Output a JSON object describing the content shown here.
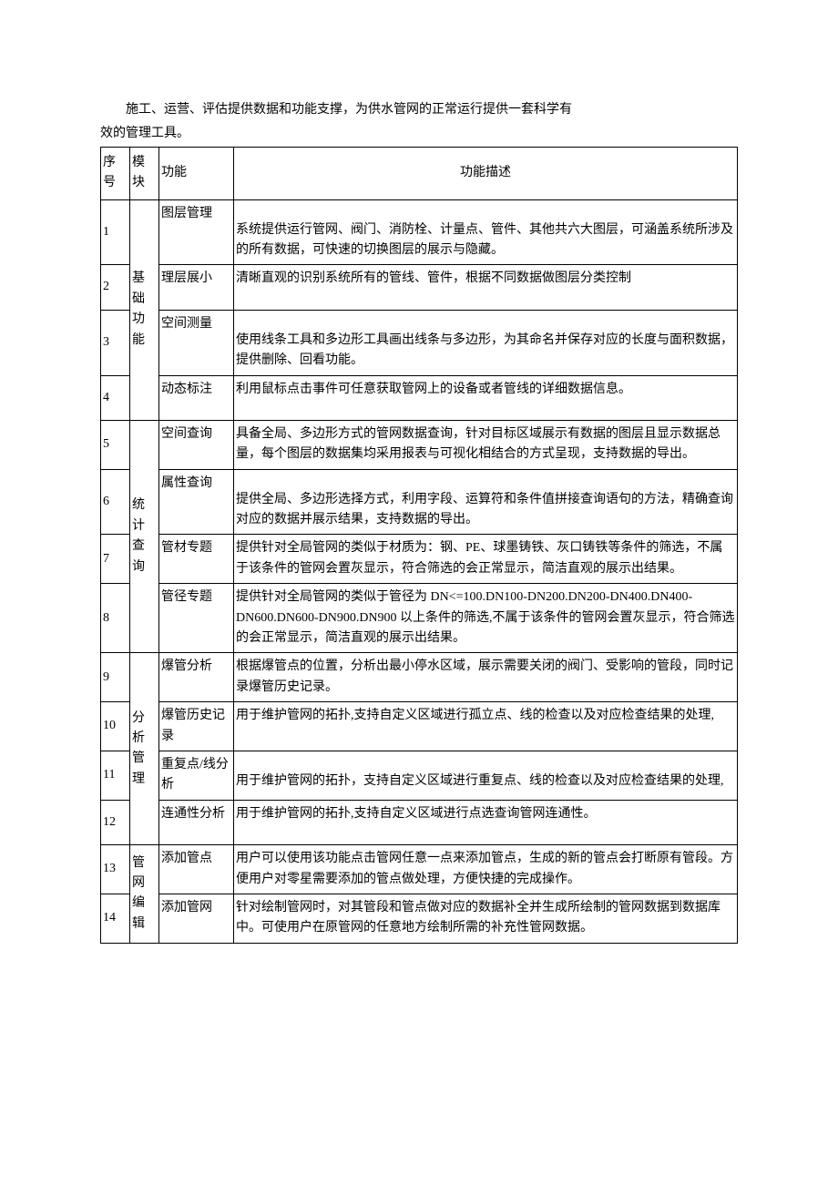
{
  "intro": {
    "line1": "施工、运营、评估提供数据和功能支撑，为供水管网的正常运行提供一套科学有",
    "line2": "效的管理工具。"
  },
  "headers": {
    "no": "序号",
    "module": "模块",
    "function": "功能",
    "description": "功能描述"
  },
  "modules": {
    "basic": "基础功能",
    "stats": "统计查询",
    "analysis": "分析管理",
    "netedit": "管网编辑"
  },
  "rows": [
    {
      "no": "1",
      "func": "图层管理",
      "desc": "系统提供运行管网、阀门、消防栓、计量点、管件、其他共六大图层，可涵盖系统所涉及的所有数据，可快速的切换图层的展示与隐藏。"
    },
    {
      "no": "2",
      "func": "理层展小",
      "desc": "清晰直观的识别系统所有的管线、管件，根据不同数据做图层分类控制"
    },
    {
      "no": "3",
      "func": "空间测量",
      "desc": "使用线条工具和多边形工具画出线条与多边形，为其命名并保存对应的长度与面积数据，提供删除、回看功能。"
    },
    {
      "no": "4",
      "func": "动态标注",
      "desc": "利用鼠标点击事件可任意获取管网上的设备或者管线的详细数据信息。"
    },
    {
      "no": "5",
      "func": "空间查询",
      "desc": "具备全局、多边形方式的管网数据查询，针对目标区域展示有数据的图层且显示数据总量，每个图层的数据集均采用报表与可视化相结合的方式呈现，支持数据的导出。"
    },
    {
      "no": "6",
      "func": "属性查询",
      "desc": "提供全局、多边形选择方式，利用字段、运算符和条件值拼接查询语句的方法，精确查询对应的数据并展示结果，支持数据的导出。"
    },
    {
      "no": "7",
      "func": "管材专题",
      "desc": "提供针对全局管网的类似于材质为：钢、PE、球墨铸铁、灰口铸铁等条件的筛选，不属于该条件的管网会置灰显示，符合筛选的会正常显示，简洁直观的展示出结果。"
    },
    {
      "no": "8",
      "func": "管径专题",
      "desc": "提供针对全局管网的类似于管径为 DN<=100.DN100-DN200.DN200-DN400.DN400-DN600.DN600-DN900.DN900 以上条件的筛选,不属于该条件的管网会置灰显示，符合筛选的会正常显示，简洁直观的展示出结果。"
    },
    {
      "no": "9",
      "func": "爆管分析",
      "desc": "根据爆管点的位置，分析出最小停水区域，展示需要关闭的阀门、受影响的管段，同时记录爆管历史记录。"
    },
    {
      "no": "10",
      "func": "爆管历史记录",
      "desc": "用于维护管网的拓扑,支持自定义区域进行孤立点、线的检查以及对应检查结果的处理,"
    },
    {
      "no": "11",
      "func": "重复点/线分析",
      "desc": "用于维护管网的拓扑，支持自定义区域进行重复点、线的检查以及对应检查结果的处理,"
    },
    {
      "no": "12",
      "func": "连通性分析",
      "desc": "用于维护管网的拓扑,支持自定义区域进行点选查询管网连通性。"
    },
    {
      "no": "13",
      "func": "添加管点",
      "desc": "用户可以使用该功能点击管网任意一点来添加管点，生成的新的管点会打断原有管段。方便用户对零星需要添加的管点做处理，方便快捷的完成操作。"
    },
    {
      "no": "14",
      "func": "添加管网",
      "desc": "针对绘制管网时，对其管段和管点做对应的数据补全并生成所绘制的管网数据到数据库中。可使用户在原管网的任意地方绘制所需的补充性管网数据。"
    }
  ]
}
